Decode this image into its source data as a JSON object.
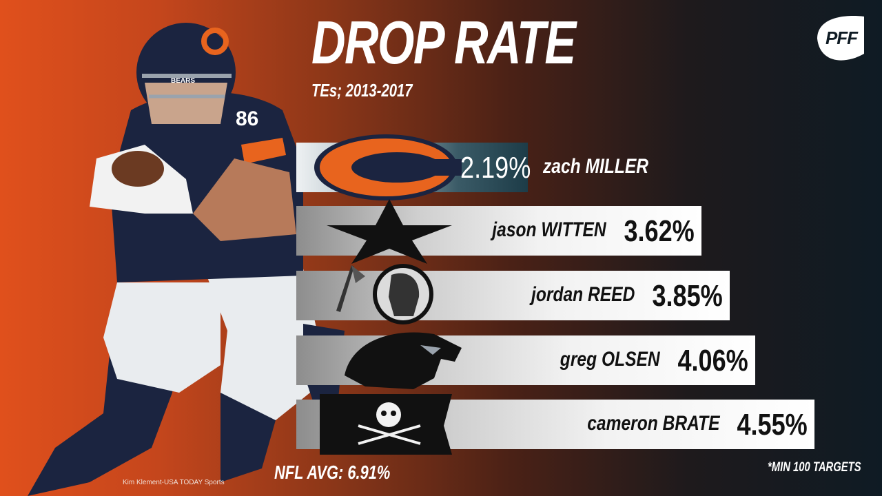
{
  "header": {
    "title": "DROP RATE",
    "subtitle": "TEs; 2013-2017",
    "brand": "PFF"
  },
  "player": {
    "jersey_number": "86",
    "helmet_text": "BEARS"
  },
  "chart_data": {
    "type": "bar",
    "orientation": "horizontal",
    "title": "DROP RATE",
    "subtitle": "TEs; 2013-2017",
    "unit": "%",
    "categories": [
      "zach MILLER",
      "jason WITTEN",
      "jordan REED",
      "greg OLSEN",
      "cameron BRATE"
    ],
    "teams": [
      "bears",
      "cowboys",
      "redskins",
      "panthers",
      "buccaneers"
    ],
    "values": [
      2.19,
      3.62,
      3.85,
      4.06,
      4.55
    ],
    "value_labels": [
      "2.19%",
      "3.62%",
      "3.85%",
      "4.06%",
      "4.55%"
    ],
    "highlight_index": 0,
    "reference_line": {
      "label": "NFL AVG: 6.91%",
      "value": 6.91
    },
    "footnote": "*MIN 100 TARGETS"
  },
  "colors": {
    "bears_orange": "#e8641e",
    "bears_navy": "#1b2440",
    "highlight_bar": "#1d3c48"
  },
  "photo_credit": "Kim Klement-USA TODAY Sports"
}
